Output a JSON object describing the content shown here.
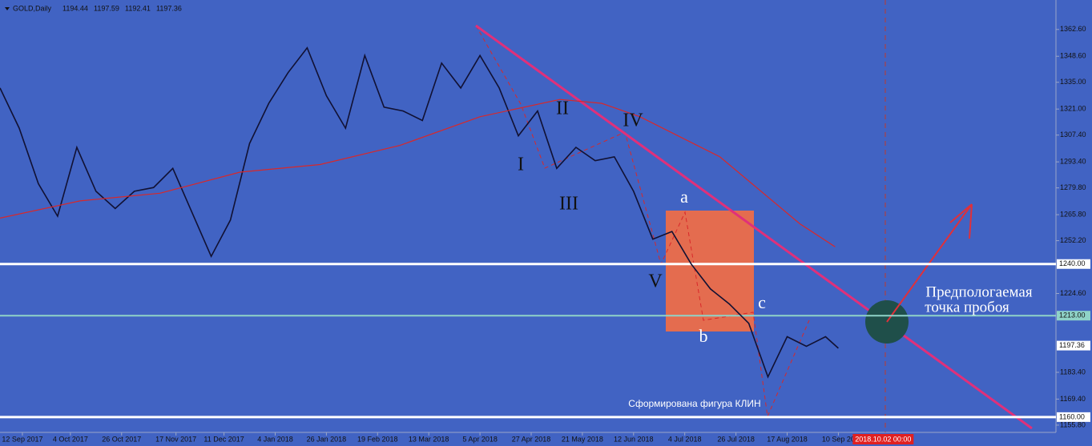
{
  "chart_data": {
    "type": "line",
    "symbol": "GOLD,Daily",
    "ohlc": [
      1194.44,
      1197.59,
      1192.41,
      1197.36
    ],
    "xlim": [
      0,
      330
    ],
    "xticks": [
      {
        "value": 7,
        "label": "12 Sep 2017"
      },
      {
        "value": 22,
        "label": "4 Oct 2017"
      },
      {
        "value": 38,
        "label": "26 Oct 2017"
      },
      {
        "value": 55,
        "label": "17 Nov 2017"
      },
      {
        "value": 70,
        "label": "11 Dec 2017"
      },
      {
        "value": 86,
        "label": "4 Jan 2018"
      },
      {
        "value": 102,
        "label": "26 Jan 2018"
      },
      {
        "value": 118,
        "label": "19 Feb 2018"
      },
      {
        "value": 134,
        "label": "13 Mar 2018"
      },
      {
        "value": 150,
        "label": "5 Apr 2018"
      },
      {
        "value": 166,
        "label": "27 Apr 2018"
      },
      {
        "value": 182,
        "label": "21 May 2018"
      },
      {
        "value": 198,
        "label": "12 Jun 2018"
      },
      {
        "value": 214,
        "label": "4 Jul 2018"
      },
      {
        "value": 230,
        "label": "26 Jul 2018"
      },
      {
        "value": 246,
        "label": "17 Aug 2018"
      },
      {
        "value": 262,
        "label": "10 Sep 20"
      }
    ],
    "cursor_date": {
      "value": 276,
      "label": "2018.10.02 00:00"
    },
    "ylim": [
      1152,
      1378
    ],
    "yticks": [
      {
        "value": 1362.6,
        "label": "1362.60"
      },
      {
        "value": 1348.6,
        "label": "1348.60"
      },
      {
        "value": 1335,
        "label": "1335.00"
      },
      {
        "value": 1321,
        "label": "1321.00"
      },
      {
        "value": 1307.4,
        "label": "1307.40"
      },
      {
        "value": 1293.4,
        "label": "1293.40"
      },
      {
        "value": 1279.8,
        "label": "1279.80"
      },
      {
        "value": 1265.8,
        "label": "1265.80"
      },
      {
        "value": 1252.2,
        "label": "1252.20"
      },
      {
        "value": 1224.6,
        "label": "1224.60"
      },
      {
        "value": 1183.4,
        "label": "1183.40"
      },
      {
        "value": 1169.4,
        "label": "1169.40"
      },
      {
        "value": 1155.8,
        "label": "1155.80"
      }
    ],
    "levels": [
      {
        "value": 1240,
        "label": "1240.00",
        "color": "#ffffff"
      },
      {
        "value": 1213,
        "label": "1213.00",
        "color": "#8fd3c8"
      },
      {
        "value": 1160,
        "label": "1160.00",
        "color": "#ffffff"
      }
    ],
    "last_price": {
      "value": 1197.36,
      "label": "1197.36"
    },
    "series": [
      {
        "color": "#111133",
        "x": [
          0,
          6,
          12,
          18,
          24,
          30,
          36,
          42,
          48,
          54,
          60,
          66,
          72,
          78,
          84,
          90,
          96,
          102,
          108,
          114,
          120,
          126,
          132,
          138,
          144,
          150,
          156,
          162,
          168,
          174,
          180,
          186,
          192,
          198,
          204,
          210,
          216,
          222,
          228,
          234,
          240,
          246,
          252,
          258,
          262
        ],
        "values": [
          1332,
          1311,
          1282,
          1265,
          1301,
          1278,
          1269,
          1278,
          1280,
          1290,
          1267,
          1244,
          1263,
          1303,
          1324,
          1340,
          1353,
          1328,
          1311,
          1349,
          1322,
          1320,
          1315,
          1345,
          1332,
          1349,
          1332,
          1307,
          1320,
          1290,
          1301,
          1294,
          1296,
          1278,
          1253,
          1257,
          1240,
          1227,
          1219,
          1209,
          1181,
          1202,
          1197,
          1202,
          1196
        ]
      },
      {
        "color": "#d8282a",
        "x": [
          0,
          25,
          50,
          75,
          100,
          125,
          150,
          175,
          188,
          200,
          225,
          250,
          261
        ],
        "values": [
          1264,
          1273,
          1277,
          1288,
          1292,
          1302,
          1317,
          1326,
          1324,
          1317,
          1296,
          1261,
          1249
        ]
      }
    ],
    "annotations": [
      "I",
      "II",
      "III",
      "IV",
      "V",
      "a",
      "b",
      "c",
      "Сформирована фигура КЛИН",
      "Предпологаемая",
      "точка пробоя"
    ]
  }
}
